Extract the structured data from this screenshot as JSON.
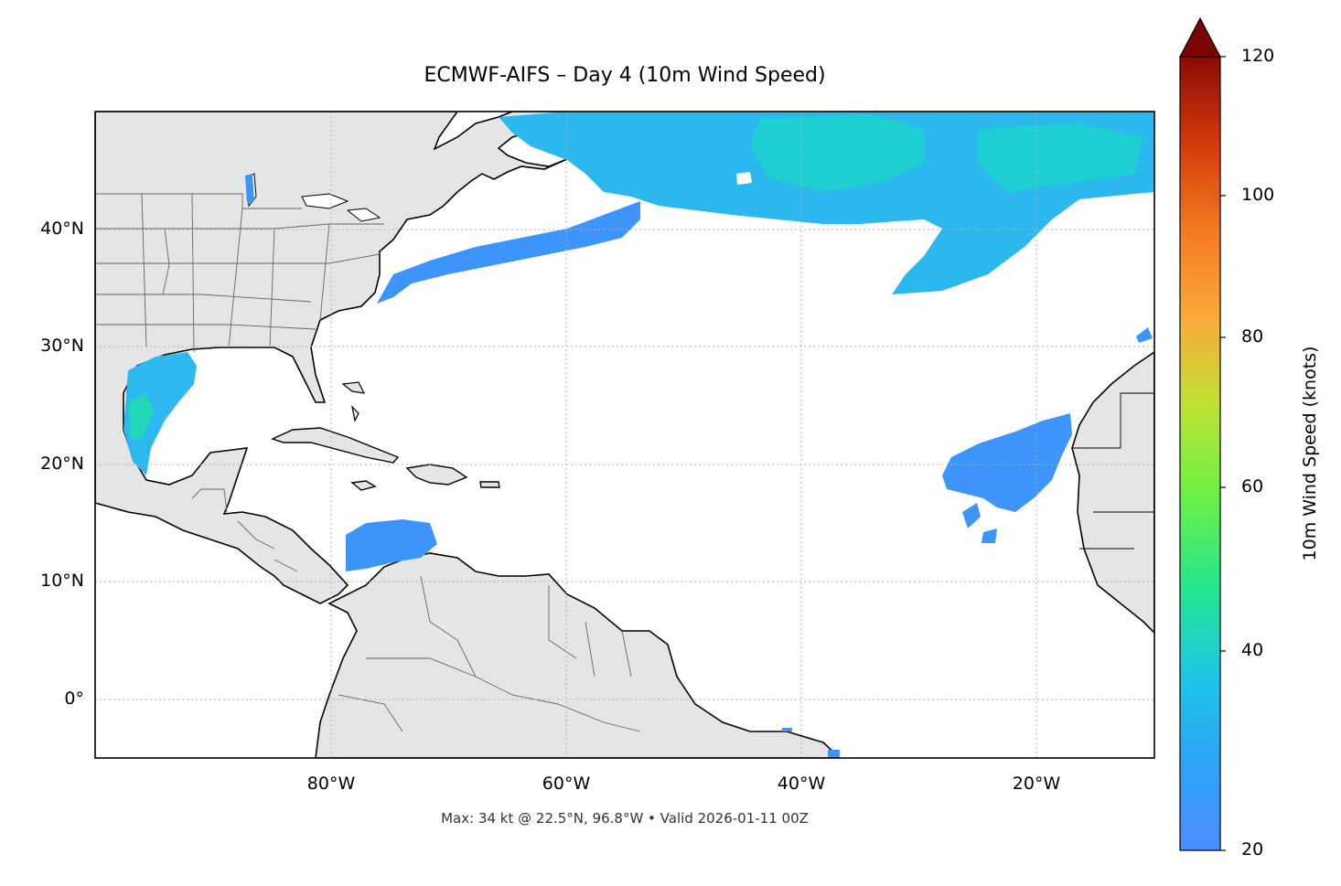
{
  "title": "ECMWF-AIFS – Day 4 (10m Wind Speed)",
  "footer": "Max: 34 kt @ 22.5°N, 96.8°W • Valid 2026-01-11 00Z",
  "map": {
    "lon_range": [
      -100,
      -10
    ],
    "lat_range": [
      -5,
      50
    ],
    "land_color": "#e5e5e5",
    "ocean_color": "#ffffff",
    "coastline_color": "#000000",
    "border_color": "#666666",
    "gridlines": true,
    "lat_ticks": [
      {
        "value": 40,
        "label": "40°N"
      },
      {
        "value": 30,
        "label": "30°N"
      },
      {
        "value": 20,
        "label": "20°N"
      },
      {
        "value": 10,
        "label": "10°N"
      },
      {
        "value": 0,
        "label": "0°"
      }
    ],
    "lon_ticks": [
      {
        "value": -80,
        "label": "80°W"
      },
      {
        "value": -60,
        "label": "60°W"
      },
      {
        "value": -40,
        "label": "40°W"
      },
      {
        "value": -20,
        "label": "20°W"
      }
    ]
  },
  "colorbar": {
    "label": "10m Wind Speed (knots)",
    "min": 20,
    "max": 120,
    "extend": "max",
    "ticks": [
      "20",
      "40",
      "60",
      "80",
      "100",
      "120"
    ],
    "colormap": [
      "#4d8cff",
      "#1ec6e6",
      "#24e68f",
      "#9bf03a",
      "#e0d82e",
      "#fbab3a",
      "#f25c1b",
      "#c02a09",
      "#7a0403"
    ]
  }
}
